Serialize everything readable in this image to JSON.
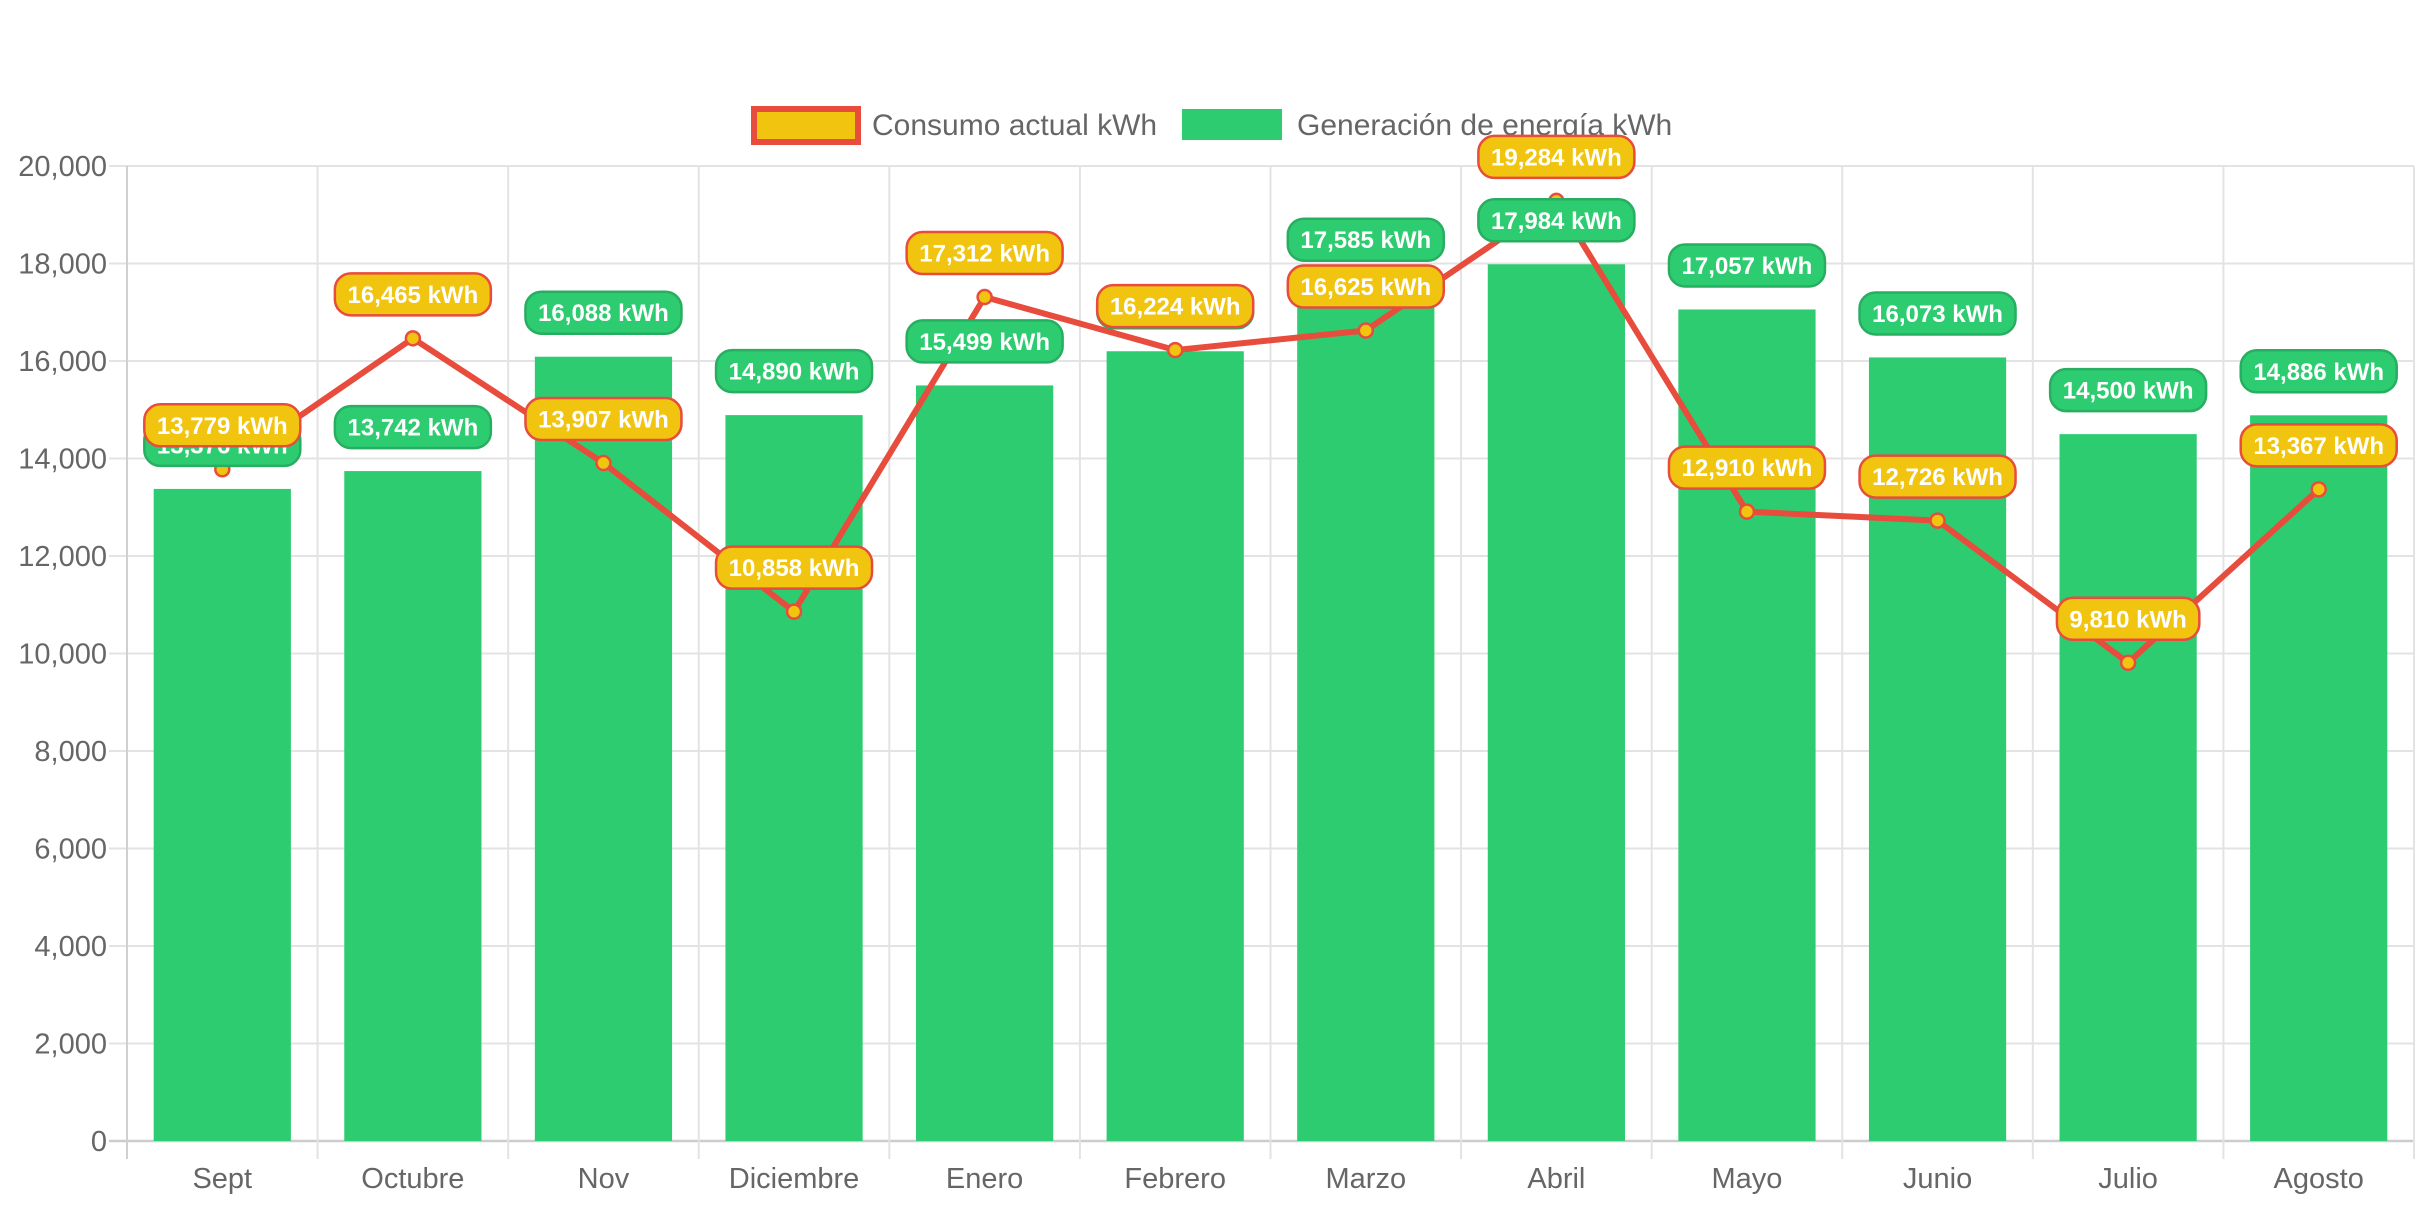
{
  "chart_data": {
    "type": "bar",
    "title": "",
    "xlabel": "",
    "ylabel": "",
    "ylim": [
      0,
      20000
    ],
    "yticks": [
      0,
      2000,
      4000,
      6000,
      8000,
      10000,
      12000,
      14000,
      16000,
      18000,
      20000
    ],
    "ytick_labels": [
      "0",
      "2,000",
      "4,000",
      "6,000",
      "8,000",
      "10,000",
      "12,000",
      "14,000",
      "16,000",
      "18,000",
      "20,000"
    ],
    "grid": true,
    "legend_position": "top-center",
    "categories": [
      "Sept",
      "Octubre",
      "Nov",
      "Diciembre",
      "Enero",
      "Febrero",
      "Marzo",
      "Abril",
      "Mayo",
      "Junio",
      "Julio",
      "Agosto"
    ],
    "series": [
      {
        "name": "Consumo actual kWh",
        "type": "line",
        "color": "#E74C3C",
        "fill_color": "#F1C40F",
        "values": [
          13779,
          16465,
          13907,
          10858,
          17312,
          16224,
          16625,
          19284,
          12910,
          12726,
          9810,
          13367
        ],
        "labels": [
          "13,779 kWh",
          "16,465 kWh",
          "13,907 kWh",
          "10,858 kWh",
          "17,312 kWh",
          "16,224 kWh",
          "16,625 kWh",
          "19,284 kWh",
          "12,910 kWh",
          "12,726 kWh",
          "9,810 kWh",
          "13,367 kWh"
        ]
      },
      {
        "name": "Generación de energía kWh",
        "type": "bar",
        "color": "#2ECC71",
        "border_color": "#27AE60",
        "values": [
          13376,
          13742,
          16088,
          14890,
          15499,
          16200,
          17585,
          17984,
          17057,
          16073,
          14500,
          14886
        ],
        "labels": [
          "13,376 kWh",
          "13,742 kWh",
          "16,088 kWh",
          "14,890 kWh",
          "15,499 kWh",
          "16,200 kWh",
          "17,585 kWh",
          "17,984 kWh",
          "17,057 kWh",
          "16,073 kWh",
          "14,500 kWh",
          "14,886 kWh"
        ]
      }
    ]
  },
  "legend": {
    "items": [
      {
        "label": "Consumo actual kWh"
      },
      {
        "label": "Generación de energía kWh"
      }
    ]
  }
}
